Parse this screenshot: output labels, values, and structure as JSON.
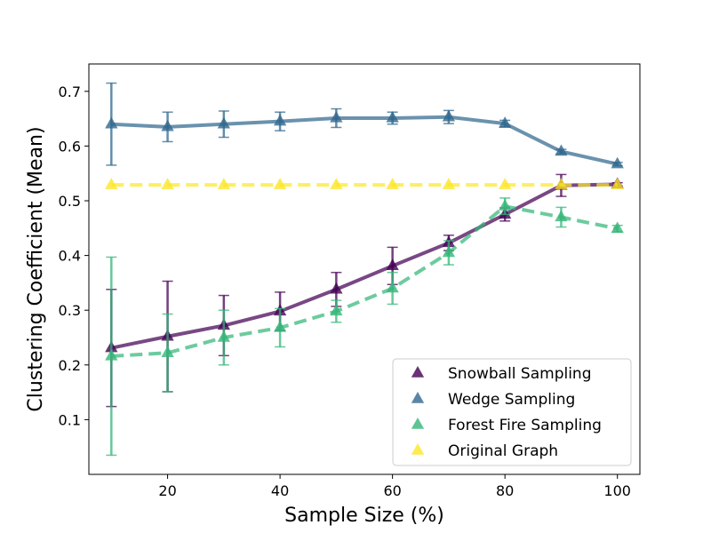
{
  "chart_data": {
    "type": "line",
    "xlabel": "Sample Size (%)",
    "ylabel": "Clustering Coefficient (Mean)",
    "xlim": [
      6,
      104
    ],
    "ylim": [
      0.0,
      0.75
    ],
    "xticks": [
      20,
      40,
      60,
      80,
      100
    ],
    "yticks": [
      0.1,
      0.2,
      0.3,
      0.4,
      0.5,
      0.6,
      0.7
    ],
    "x": [
      10,
      20,
      30,
      40,
      50,
      60,
      70,
      80,
      90,
      100
    ],
    "legend_position": "lower-right",
    "grid": false,
    "series": [
      {
        "name": "Snowball Sampling",
        "color": "#440154",
        "line_style": "solid",
        "values": [
          0.231,
          0.252,
          0.272,
          0.298,
          0.338,
          0.381,
          0.423,
          0.475,
          0.528,
          0.53
        ],
        "errors": [
          0.107,
          0.101,
          0.055,
          0.035,
          0.031,
          0.034,
          0.014,
          0.012,
          0.02,
          0.003
        ]
      },
      {
        "name": "Wedge Sampling",
        "color": "#31688e",
        "line_style": "solid",
        "values": [
          0.64,
          0.635,
          0.64,
          0.645,
          0.651,
          0.651,
          0.653,
          0.641,
          0.59,
          0.567
        ],
        "errors": [
          0.075,
          0.027,
          0.024,
          0.017,
          0.017,
          0.011,
          0.012,
          0.006,
          0.004,
          0.003
        ]
      },
      {
        "name": "Forest Fire Sampling",
        "color": "#35b779",
        "line_style": "dashed",
        "values": [
          0.216,
          0.222,
          0.25,
          0.268,
          0.298,
          0.34,
          0.405,
          0.49,
          0.47,
          0.449
        ],
        "errors": [
          0.181,
          0.071,
          0.05,
          0.035,
          0.02,
          0.029,
          0.022,
          0.015,
          0.018,
          0.006
        ]
      },
      {
        "name": "Original Graph",
        "color": "#fde725",
        "line_style": "dashed",
        "values": [
          0.529,
          0.529,
          0.529,
          0.529,
          0.529,
          0.529,
          0.529,
          0.529,
          0.529,
          0.529
        ],
        "errors": [
          0,
          0,
          0,
          0,
          0,
          0,
          0,
          0,
          0,
          0
        ]
      }
    ]
  }
}
